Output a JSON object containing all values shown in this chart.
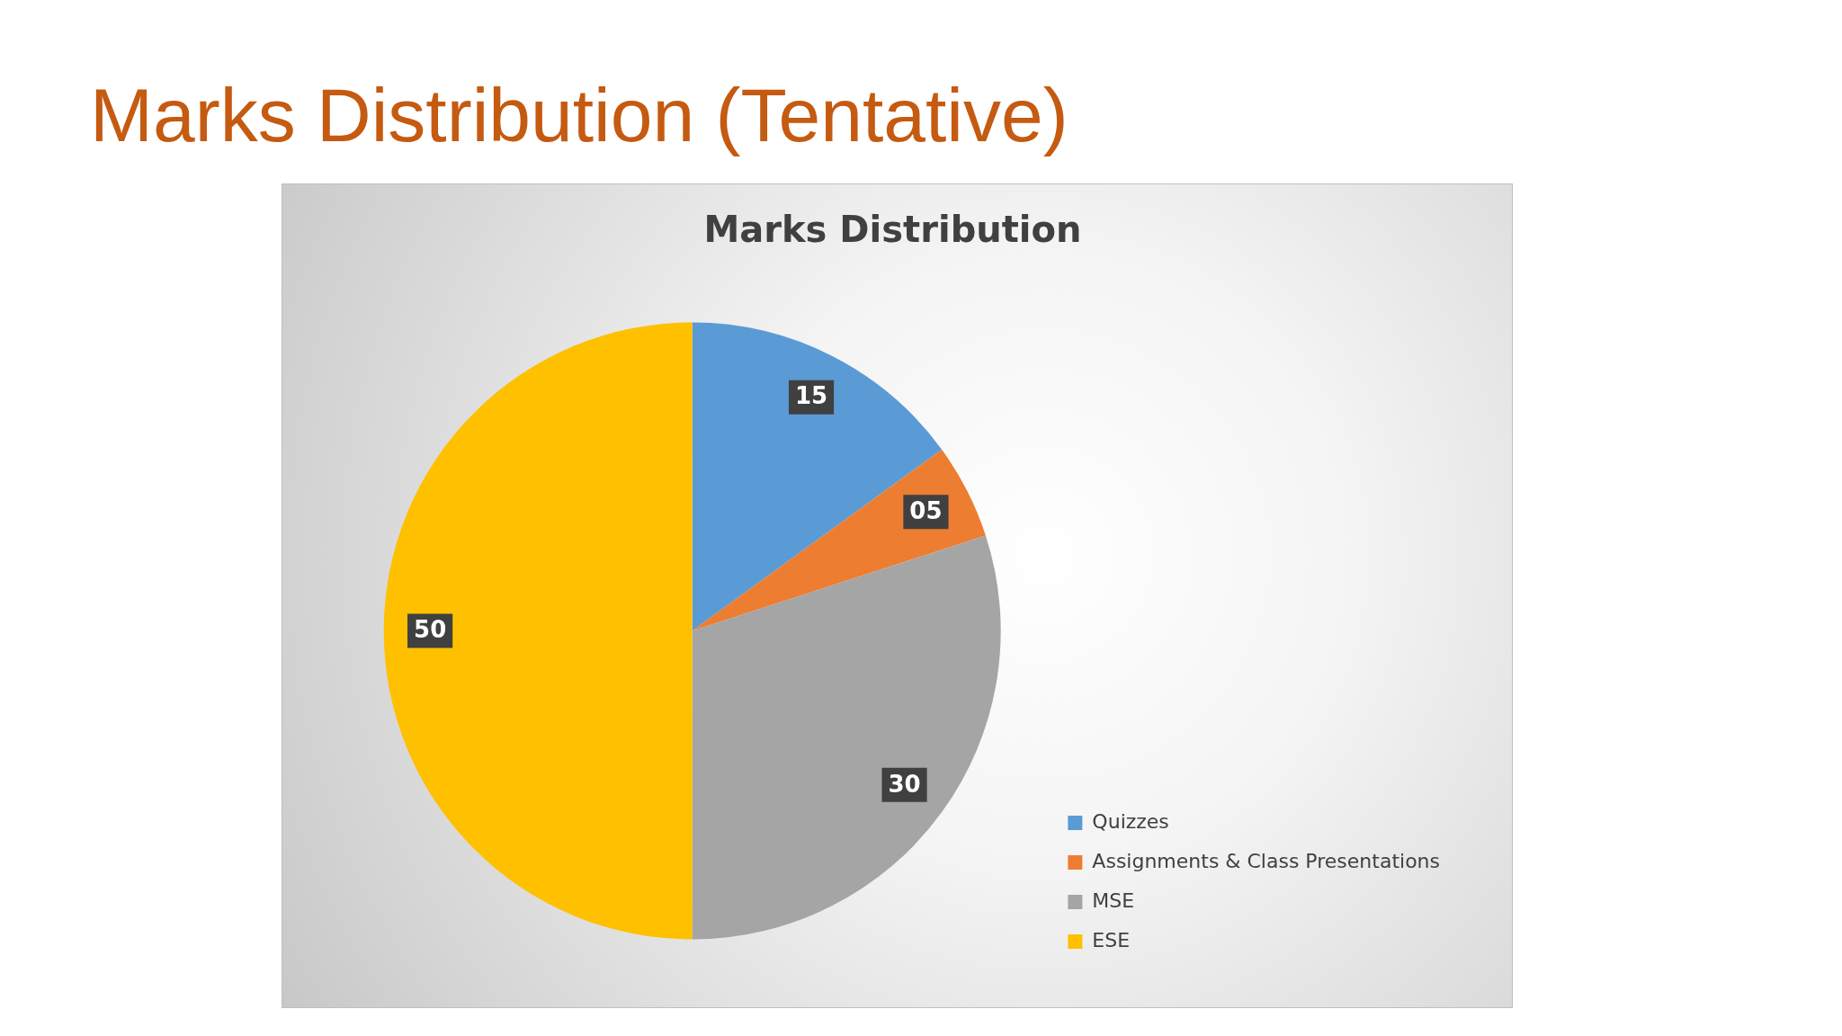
{
  "chart_data": {
    "type": "pie",
    "title": "Marks Distribution (Tentative)",
    "subtitle": "Marks Distribution",
    "categories": [
      "Quizzes",
      "Assignments & Class Presentations",
      "MSE",
      "ESE"
    ],
    "values": [
      15,
      5,
      30,
      50
    ],
    "value_labels": [
      "15",
      "05",
      "30",
      "50"
    ],
    "colors": [
      "#5b9bd5",
      "#ed7d31",
      "#a5a5a5",
      "#ffc000"
    ],
    "legend": "bottom right"
  }
}
